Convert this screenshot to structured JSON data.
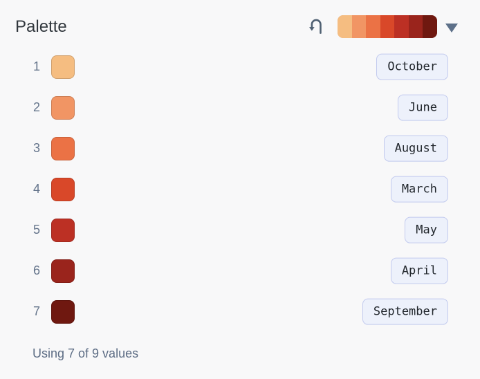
{
  "panel": {
    "title": "Palette",
    "footer": "Using 7 of 9 values"
  },
  "header": {
    "undo_icon": "undo-arrow-icon",
    "dropdown_icon": "triangle-down-icon"
  },
  "rows": [
    {
      "index": "1",
      "color": "#F5BD81",
      "label": "October"
    },
    {
      "index": "2",
      "color": "#F19564",
      "label": "June"
    },
    {
      "index": "3",
      "color": "#EB7245",
      "label": "August"
    },
    {
      "index": "4",
      "color": "#D94829",
      "label": "March"
    },
    {
      "index": "5",
      "color": "#BC3024",
      "label": "May"
    },
    {
      "index": "6",
      "color": "#9A241C",
      "label": "April"
    },
    {
      "index": "7",
      "color": "#6F1810",
      "label": "September"
    }
  ],
  "colors": {
    "background": "#F8F8F9",
    "button_bg": "#EDF1FB",
    "button_border": "#C2CAEE",
    "icon": "#4F6072",
    "muted_text": "#5C6C84"
  }
}
